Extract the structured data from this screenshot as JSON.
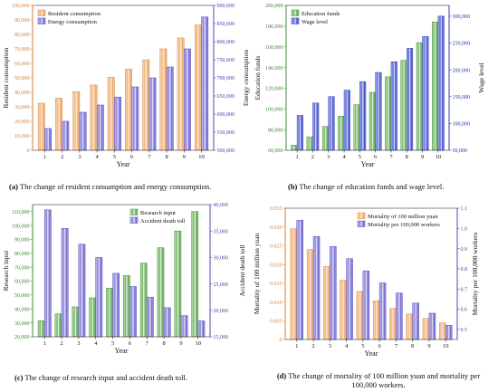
{
  "chart_data": [
    {
      "type": "bar",
      "caption_label": "(a)",
      "caption": "The change of resident consumption and energy consumption.",
      "categories": [
        "1",
        "2",
        "3",
        "4",
        "5",
        "6",
        "7",
        "8",
        "9",
        "10"
      ],
      "xlabel": "Year",
      "ylabel": "Resident consumption",
      "y2label": "Energy consumption",
      "ylim": [
        0,
        100000
      ],
      "y2lim": [
        500000,
        900000
      ],
      "yticks": [
        0,
        10000,
        20000,
        30000,
        40000,
        50000,
        60000,
        70000,
        80000,
        90000,
        100000
      ],
      "y2ticks": [
        500000,
        550000,
        600000,
        650000,
        700000,
        750000,
        800000,
        850000,
        900000
      ],
      "ytick_labels": [
        "0",
        "10,000",
        "20,000",
        "30,000",
        "40,000",
        "50,000",
        "60,000",
        "70,000",
        "80,000",
        "90,000",
        "100,000"
      ],
      "y2tick_labels": [
        "500,000",
        "550,000",
        "600,000",
        "650,000",
        "700,000",
        "750,000",
        "800,000",
        "850,000",
        "900,000"
      ],
      "legend_position": "top-left",
      "series": [
        {
          "name": "Resident consumption",
          "axis": "left",
          "pattern": "orange",
          "values": [
            32500,
            36000,
            40500,
            45000,
            50500,
            56000,
            62500,
            70000,
            77500,
            86500
          ]
        },
        {
          "name": "Energy consumption",
          "axis": "right",
          "pattern": "purple",
          "values": [
            560000,
            580000,
            605000,
            625000,
            647000,
            675000,
            700000,
            730000,
            780000,
            868000
          ]
        }
      ]
    },
    {
      "type": "bar",
      "caption_label": "(b)",
      "caption": "The change of education funds and wage level.",
      "categories": [
        "1",
        "2",
        "3",
        "4",
        "5",
        "6",
        "7",
        "8",
        "9",
        "10"
      ],
      "xlabel": "Year",
      "ylabel": "Education funds",
      "y2label": "Wage level",
      "ylim": [
        60000,
        200000
      ],
      "y2lim": [
        50000,
        320000
      ],
      "yticks": [
        60000,
        80000,
        100000,
        120000,
        140000,
        160000,
        180000,
        200000
      ],
      "y2ticks": [
        50000,
        100000,
        150000,
        200000,
        250000,
        300000
      ],
      "ytick_labels": [
        "60,000",
        "80,000",
        "100,000",
        "120,000",
        "140,000",
        "160,000",
        "180,000",
        "200,000"
      ],
      "y2tick_labels": [
        "50,000",
        "100,000",
        "150,000",
        "200,000",
        "250,000",
        "300,000"
      ],
      "legend_position": "top-left",
      "series": [
        {
          "name": "Education funds",
          "axis": "left",
          "pattern": "green",
          "values": [
            65000,
            73000,
            83000,
            93000,
            104000,
            116000,
            131000,
            147000,
            164000,
            184000
          ]
        },
        {
          "name": "Wage level",
          "axis": "right",
          "pattern": "blue",
          "values": [
            115000,
            138000,
            150000,
            162000,
            178000,
            195000,
            215000,
            240000,
            262000,
            300000
          ]
        }
      ]
    },
    {
      "type": "bar",
      "caption_label": "(c)",
      "caption": "The change of research input and accident death toll.",
      "categories": [
        "1",
        "2",
        "3",
        "4",
        "5",
        "6",
        "7",
        "8",
        "9",
        "10"
      ],
      "xlabel": "Year",
      "ylabel": "Research input",
      "y2label": "Accident death toll",
      "ylim": [
        20000,
        115000
      ],
      "y2lim": [
        15000,
        40000
      ],
      "yticks": [
        20000,
        30000,
        40000,
        50000,
        60000,
        70000,
        80000,
        90000,
        100000,
        110000
      ],
      "y2ticks": [
        15000,
        20000,
        25000,
        30000,
        35000,
        40000
      ],
      "ytick_labels": [
        "20,000",
        "30,000",
        "40,000",
        "50,000",
        "60,000",
        "70,000",
        "80,000",
        "90,000",
        "100,000",
        "110,000"
      ],
      "y2tick_labels": [
        "15,000",
        "20,000",
        "25,000",
        "30,000",
        "35,000",
        "40,000"
      ],
      "legend_position": "top-right",
      "series": [
        {
          "name": "Research input",
          "axis": "left",
          "pattern": "green",
          "values": [
            31500,
            36500,
            41500,
            48000,
            55000,
            64000,
            73000,
            84000,
            96000,
            110000
          ]
        },
        {
          "name": "Accident death toll",
          "axis": "right",
          "pattern": "purple",
          "values": [
            39000,
            35500,
            32500,
            30000,
            27000,
            24500,
            22500,
            20500,
            19000,
            18000
          ]
        }
      ]
    },
    {
      "type": "bar",
      "caption_label": "(d)",
      "caption": "The change of mortality of 100 million yuan and mortality per 100,000 workers.",
      "categories": [
        "1",
        "2",
        "3",
        "4",
        "5",
        "6",
        "7",
        "8",
        "9",
        "10"
      ],
      "xlabel": "Year",
      "ylabel": "Mortality of 100 million yuan",
      "y2label": "Mortality per 100,000 workers",
      "ylim": [
        0,
        0.035
      ],
      "y2lim": [
        0.45,
        1.1
      ],
      "yticks": [
        0,
        0.005,
        0.01,
        0.015,
        0.02,
        0.025,
        0.03,
        0.035
      ],
      "y2ticks": [
        0.5,
        0.6,
        0.7,
        0.8,
        0.9,
        1.0,
        1.1
      ],
      "ytick_labels": [
        "0",
        "0.005",
        "0.010",
        "0.015",
        "0.020",
        "0.025",
        "0.030",
        "0.035"
      ],
      "y2tick_labels": [
        "0.5",
        "0.6",
        "0.7",
        "0.8",
        "0.9",
        "1.0",
        "1.1"
      ],
      "legend_position": "top-right",
      "series": [
        {
          "name": "Mortality of 100 million yuan",
          "axis": "left",
          "pattern": "orange",
          "values": [
            0.0295,
            0.024,
            0.0195,
            0.0158,
            0.0128,
            0.0103,
            0.0083,
            0.0068,
            0.0056,
            0.0044
          ]
        },
        {
          "name": "Mortality per 100,000 workers",
          "axis": "right",
          "pattern": "purple",
          "values": [
            1.04,
            0.96,
            0.91,
            0.85,
            0.79,
            0.73,
            0.68,
            0.63,
            0.58,
            0.52
          ]
        }
      ]
    }
  ]
}
